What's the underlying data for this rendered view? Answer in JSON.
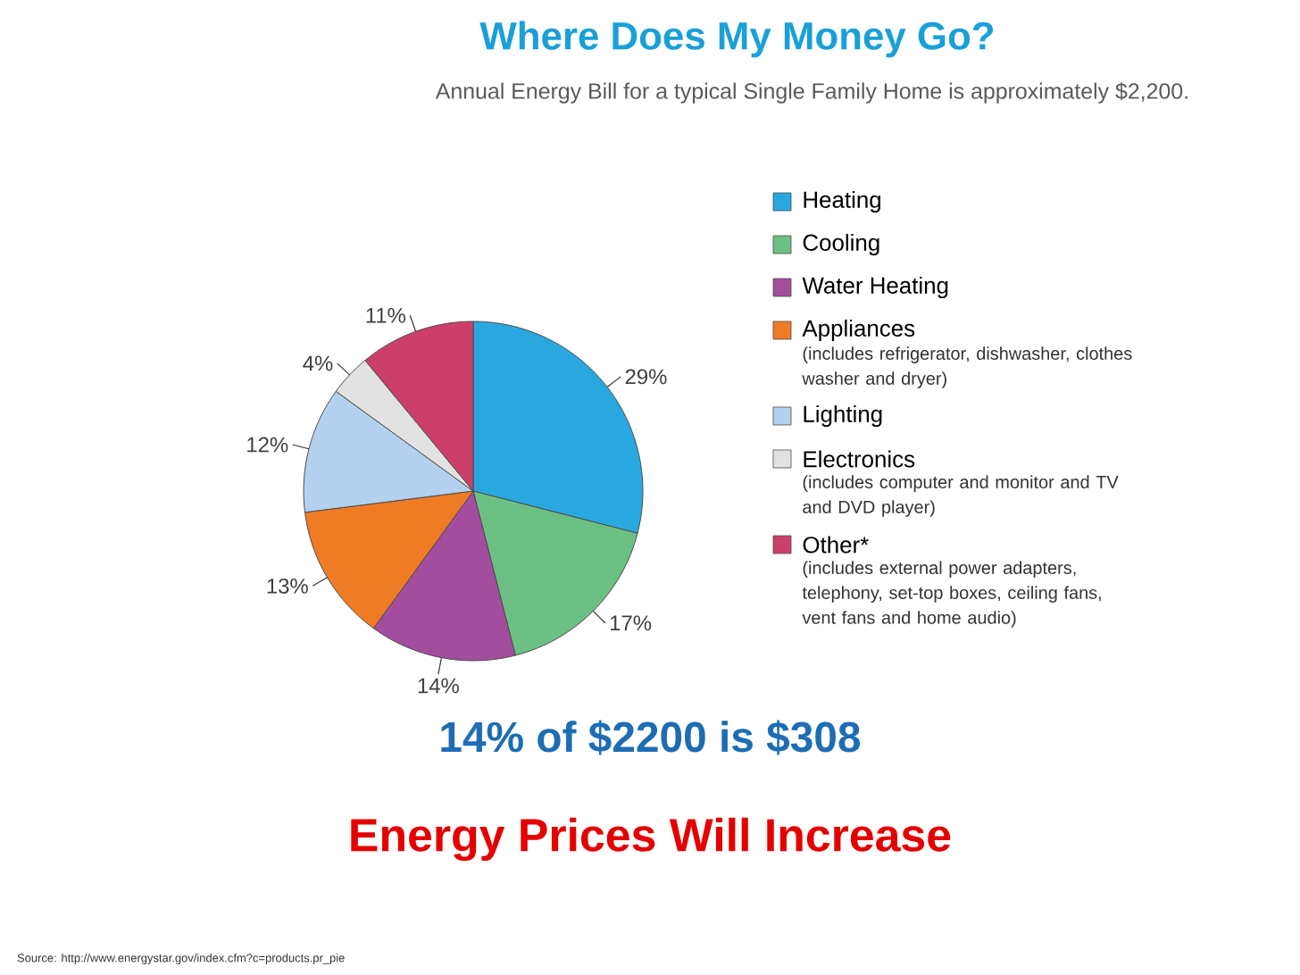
{
  "chart_data": {
    "type": "pie",
    "title": "Where Does My Money Go?",
    "subtitle": "Annual Energy Bill for a typical Single Family Home is approximately $2,200.",
    "categories": [
      "Heating",
      "Cooling",
      "Water Heating",
      "Appliances",
      "Lighting",
      "Electronics",
      "Other*"
    ],
    "values": [
      29,
      17,
      14,
      13,
      12,
      4,
      11
    ],
    "value_labels": [
      "29%",
      "17%",
      "14%",
      "13%",
      "12%",
      "4%",
      "11%"
    ],
    "colors": [
      "#29a8e0",
      "#6cc083",
      "#a34d9e",
      "#ef7b25",
      "#b3d1ee",
      "#e2e2e2",
      "#cc3f6b"
    ],
    "legend": "right",
    "annotations": [
      "(includes refrigerator, dishwasher, clothes washer and dryer)",
      "(includes computer and monitor and TV and DVD player)",
      "(includes external power adapters, telephony, set-top boxes, ceiling fans, vent fans and home audio)",
      "14% of $2200 is $308",
      "Energy Prices Will Increase",
      "Source: http://www.energystar.gov/index.cfm?c=products.pr_pie"
    ]
  }
}
